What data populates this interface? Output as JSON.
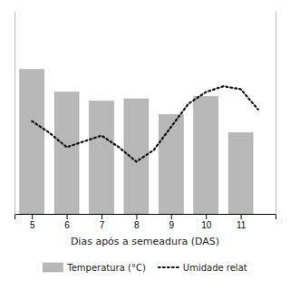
{
  "chart_data": {
    "type": "bar",
    "xlabel": "Dias após a semeadura (DAS)",
    "xlim": [
      4.5,
      12.0
    ],
    "xticks": [
      5,
      6,
      7,
      8,
      9,
      10,
      11
    ],
    "ylim": [
      0,
      45
    ],
    "y2lim": [
      40,
      110
    ],
    "tick_labels": "x",
    "grid": false,
    "legend": "bottom",
    "series": [
      {
        "name": "Temperatura (°C)",
        "type": "bar",
        "color": "#b8b8b8",
        "x": [
          5,
          6,
          7,
          8,
          9,
          10,
          11
        ],
        "values": [
          32,
          27,
          25,
          25.5,
          22,
          26,
          18
        ]
      },
      {
        "name": "Umidade relat",
        "type": "line",
        "axis": "y2",
        "color": "#111111",
        "line_style": "dotted",
        "x": [
          5,
          5.5,
          6,
          6.5,
          7,
          7.5,
          8,
          8.5,
          9,
          9.5,
          10,
          10.5,
          11,
          11.5
        ],
        "values": [
          72,
          68,
          63,
          65,
          67,
          63,
          58,
          62,
          70,
          78,
          82,
          84,
          83,
          76
        ]
      }
    ]
  }
}
